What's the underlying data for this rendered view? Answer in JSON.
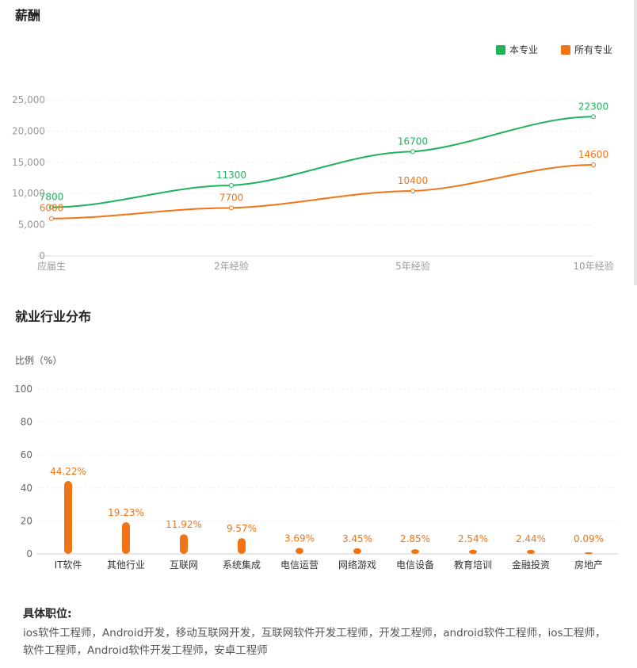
{
  "salary": {
    "title": "薪酬"
  },
  "industry": {
    "title": "就业行业分布"
  },
  "positions": {
    "label": "具体职位:",
    "text": "ios软件工程师，Android开发，移动互联网开发，互联网软件开发工程师，开发工程师，android软件工程师，ios工程师，软件工程师，Android软件开发工程师，安卓工程师"
  },
  "chart_data": [
    {
      "type": "line",
      "categories": [
        "应届生",
        "2年经验",
        "5年经验",
        "10年经验"
      ],
      "series": [
        {
          "name": "本专业",
          "color": "#1fb25a",
          "values": [
            7800,
            11300,
            16700,
            22300
          ]
        },
        {
          "name": "所有专业",
          "color": "#f07416",
          "values": [
            6000,
            7700,
            10400,
            14600
          ]
        }
      ],
      "yticks": [
        "0",
        "5,000",
        "10,000",
        "15,000",
        "20,000",
        "25,000"
      ],
      "ylim": [
        0,
        25000
      ],
      "legend": "top-right",
      "grid": true
    },
    {
      "type": "bar",
      "ylabel": "比例（%）",
      "categories": [
        "IT软件",
        "其他行业",
        "互联网",
        "系统集成",
        "电信运营",
        "网络游戏",
        "电信设备",
        "教育培训",
        "金融投资",
        "房地产"
      ],
      "values": [
        44.22,
        19.23,
        11.92,
        9.57,
        3.69,
        3.45,
        2.85,
        2.54,
        2.44,
        0.09
      ],
      "labels": [
        "44.22%",
        "19.23%",
        "11.92%",
        "9.57%",
        "3.69%",
        "3.45%",
        "2.85%",
        "2.54%",
        "2.44%",
        "0.09%"
      ],
      "yticks": [
        "0",
        "20",
        "40",
        "60",
        "80",
        "100"
      ],
      "ylim": [
        0,
        100
      ],
      "color": "#f07416",
      "grid": true
    }
  ]
}
